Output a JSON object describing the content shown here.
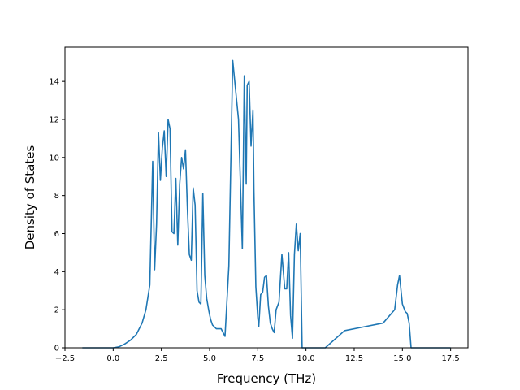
{
  "chart_data": {
    "type": "line",
    "title": "",
    "xlabel": "Frequency (THz)",
    "ylabel": "Density of States",
    "xlim": [
      -2.5,
      18.4
    ],
    "ylim": [
      0,
      15.8
    ],
    "xticks": [
      -2.5,
      0.0,
      2.5,
      5.0,
      7.5,
      10.0,
      12.5,
      15.0,
      17.5
    ],
    "xtick_labels": [
      "−2.5",
      "0.0",
      "2.5",
      "5.0",
      "7.5",
      "10.0",
      "12.5",
      "15.0",
      "17.5"
    ],
    "yticks": [
      0,
      2,
      4,
      6,
      8,
      10,
      12,
      14
    ],
    "ytick_labels": [
      "0",
      "2",
      "4",
      "6",
      "8",
      "10",
      "12",
      "14"
    ],
    "grid": false,
    "line_color": "#1f77b4",
    "series": [
      {
        "x": [
          -1.6,
          -1.0,
          -0.5,
          0.0,
          0.3,
          0.6,
          0.9,
          1.2,
          1.5,
          1.7,
          1.9,
          2.05,
          2.15,
          2.25,
          2.35,
          2.45,
          2.55,
          2.65,
          2.75,
          2.85,
          2.95,
          3.05,
          3.15,
          3.25,
          3.35,
          3.45,
          3.55,
          3.65,
          3.75,
          3.85,
          3.95,
          4.05,
          4.15,
          4.25,
          4.35,
          4.45,
          4.55,
          4.65,
          4.75,
          4.85,
          4.95,
          5.05,
          5.15,
          5.25,
          5.35,
          5.45,
          5.6,
          5.8,
          6.0,
          6.2,
          6.5,
          6.7,
          6.8,
          6.9,
          6.95,
          7.05,
          7.15,
          7.25,
          7.3,
          7.4,
          7.5,
          7.55,
          7.65,
          7.75,
          7.85,
          7.95,
          8.05,
          8.15,
          8.25,
          8.35,
          8.45,
          8.6,
          8.75,
          8.9,
          9.0,
          9.1,
          9.2,
          9.3,
          9.4,
          9.5,
          9.6,
          9.7,
          9.8,
          9.9,
          9.95,
          10.05,
          10.15,
          10.25,
          10.35,
          11.0,
          12.0,
          13.0,
          14.0,
          14.6,
          14.75,
          14.85,
          15.0,
          15.15,
          15.25,
          15.35,
          15.45,
          15.55,
          15.65,
          15.75,
          15.85,
          15.95,
          16.5,
          17.0,
          17.5
        ],
        "y": [
          0.0,
          0.0,
          0.0,
          0.0,
          0.05,
          0.2,
          0.4,
          0.7,
          1.3,
          2.0,
          3.3,
          9.8,
          4.1,
          6.5,
          11.3,
          8.8,
          10.5,
          11.4,
          9.0,
          12.0,
          11.5,
          6.1,
          6.0,
          8.9,
          5.4,
          8.6,
          10.0,
          9.4,
          10.4,
          7.3,
          4.9,
          4.6,
          8.4,
          7.5,
          3.0,
          2.4,
          2.3,
          8.1,
          3.8,
          2.6,
          2.0,
          1.5,
          1.2,
          1.1,
          1.0,
          1.0,
          1.0,
          0.6,
          4.3,
          15.1,
          12.0,
          5.2,
          14.3,
          8.6,
          13.8,
          14.0,
          10.6,
          12.5,
          8.3,
          3.2,
          1.6,
          1.1,
          2.8,
          2.9,
          3.7,
          3.8,
          2.2,
          1.3,
          1.0,
          0.8,
          2.0,
          2.4,
          4.9,
          3.1,
          3.1,
          5.0,
          1.7,
          0.5,
          4.9,
          6.5,
          5.1,
          6.0,
          0.0,
          0.0,
          0.0,
          0.0,
          0.0,
          0.0,
          0.0,
          0.0,
          0.9,
          1.1,
          1.3,
          2.0,
          3.3,
          3.8,
          2.3,
          1.9,
          1.8,
          1.3,
          0.0,
          0.0,
          0.0,
          0.0,
          0.0,
          0.0,
          0.0,
          0.0,
          0.0
        ]
      }
    ]
  }
}
